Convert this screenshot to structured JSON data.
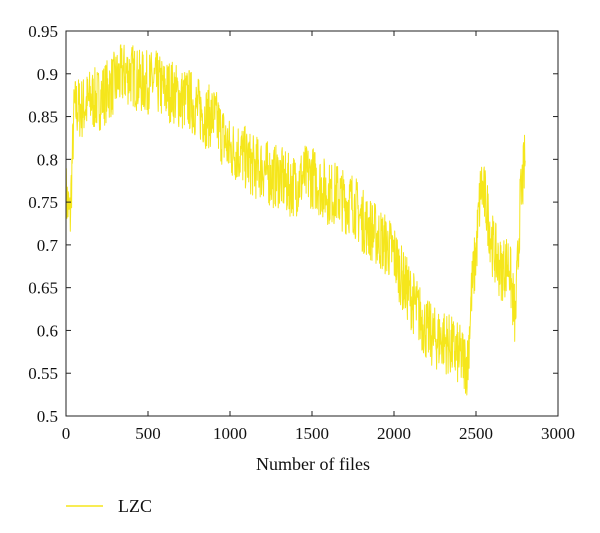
{
  "chart_data": {
    "type": "line",
    "title": "",
    "xlabel": "Number of files",
    "ylabel": "",
    "xlim": [
      0,
      3000
    ],
    "ylim": [
      0.5,
      0.95
    ],
    "xticks": [
      "0",
      "500",
      "1000",
      "1500",
      "2000",
      "2500",
      "3000"
    ],
    "yticks": [
      "0.5",
      "0.55",
      "0.6",
      "0.65",
      "0.7",
      "0.75",
      "0.8",
      "0.85",
      "0.9",
      "0.95"
    ],
    "grid": false,
    "legend": {
      "placement": "bottom-left",
      "entries": [
        "LZC"
      ]
    },
    "series": [
      {
        "name": "LZC",
        "color": "#f5e61b",
        "x": [
          0,
          25,
          50,
          100,
          150,
          200,
          250,
          300,
          350,
          400,
          450,
          500,
          550,
          600,
          650,
          700,
          750,
          800,
          850,
          900,
          950,
          1000,
          1050,
          1100,
          1150,
          1200,
          1250,
          1300,
          1350,
          1400,
          1450,
          1500,
          1550,
          1600,
          1650,
          1700,
          1750,
          1800,
          1850,
          1900,
          1950,
          2000,
          2050,
          2100,
          2150,
          2200,
          2250,
          2300,
          2350,
          2400,
          2450,
          2470,
          2500,
          2530,
          2560,
          2600,
          2650,
          2700,
          2740,
          2770,
          2800
        ],
        "y": [
          0.76,
          0.73,
          0.86,
          0.86,
          0.87,
          0.87,
          0.88,
          0.89,
          0.9,
          0.9,
          0.89,
          0.89,
          0.89,
          0.88,
          0.88,
          0.87,
          0.87,
          0.86,
          0.85,
          0.85,
          0.83,
          0.81,
          0.81,
          0.8,
          0.79,
          0.79,
          0.78,
          0.78,
          0.77,
          0.77,
          0.78,
          0.78,
          0.77,
          0.76,
          0.76,
          0.75,
          0.75,
          0.73,
          0.72,
          0.71,
          0.7,
          0.69,
          0.66,
          0.64,
          0.62,
          0.6,
          0.59,
          0.59,
          0.58,
          0.57,
          0.56,
          0.64,
          0.69,
          0.77,
          0.75,
          0.7,
          0.67,
          0.68,
          0.61,
          0.75,
          0.8
        ]
      }
    ]
  }
}
